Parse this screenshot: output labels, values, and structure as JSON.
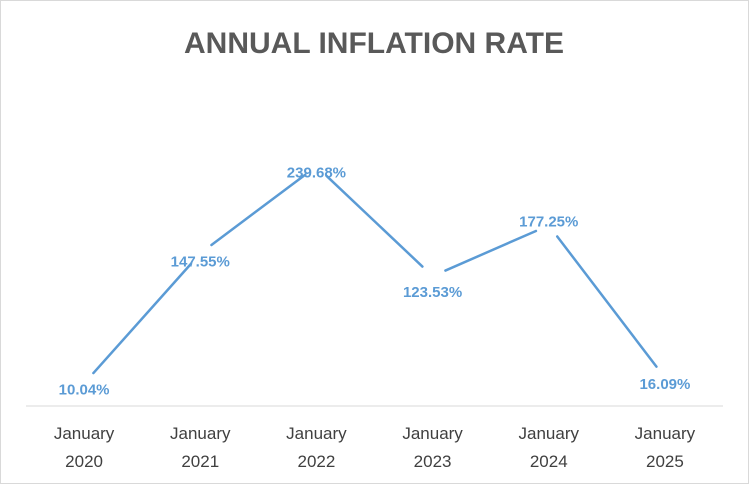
{
  "chart_data": {
    "type": "line",
    "title": "ANNUAL INFLATION RATE",
    "xlabel": "",
    "ylabel": "",
    "categories": [
      [
        "January",
        "2020"
      ],
      [
        "January",
        "2021"
      ],
      [
        "January",
        "2022"
      ],
      [
        "January",
        "2023"
      ],
      [
        "January",
        "2024"
      ],
      [
        "January",
        "2025"
      ]
    ],
    "values": [
      10.04,
      147.55,
      239.68,
      123.53,
      177.25,
      16.09
    ],
    "data_labels": [
      "10.04%",
      "147.55%",
      "239.68%",
      "123.53%",
      "177.25%",
      "16.09%"
    ],
    "ylim": [
      0,
      240
    ],
    "grid": false,
    "legend": "none",
    "line_color": "#5b9bd5",
    "label_color": "#5b9bd5"
  }
}
